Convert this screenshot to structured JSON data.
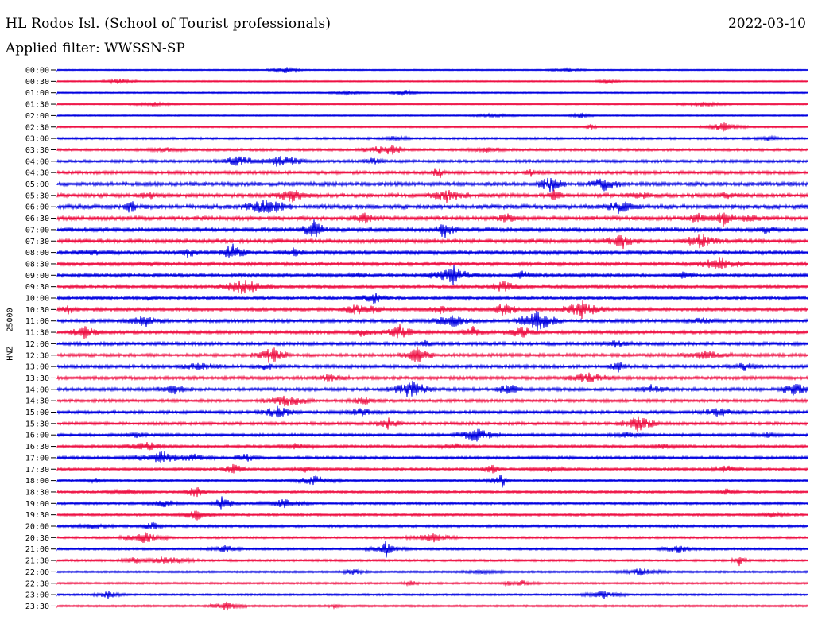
{
  "header": {
    "station": "HL Rodos Isl. (School of Tourist professionals)",
    "date": "2022-03-10",
    "filter": "Applied filter: WWSSN-SP"
  },
  "chart_data": {
    "type": "line",
    "title": "HL Rodos Isl. (School of Tourist professionals)",
    "ylabel": "HNZ - 25000",
    "xlabel": "",
    "rows": [
      "00:00",
      "00:30",
      "01:00",
      "01:30",
      "02:00",
      "02:30",
      "03:00",
      "03:30",
      "04:00",
      "04:30",
      "05:00",
      "05:30",
      "06:00",
      "06:30",
      "07:00",
      "07:30",
      "08:00",
      "08:30",
      "09:00",
      "09:30",
      "10:00",
      "10:30",
      "11:00",
      "11:30",
      "12:00",
      "12:30",
      "13:00",
      "13:30",
      "14:00",
      "14:30",
      "15:00",
      "15:30",
      "16:00",
      "16:30",
      "17:00",
      "17:30",
      "18:00",
      "18:30",
      "19:00",
      "19:30",
      "20:00",
      "20:30",
      "21:00",
      "21:30",
      "22:00",
      "22:30",
      "23:00",
      "23:30"
    ],
    "colors": [
      "#0000e0",
      "#ee1144"
    ],
    "activity_level": [
      0.08,
      0.09,
      0.1,
      0.1,
      0.1,
      0.15,
      0.25,
      0.3,
      0.35,
      0.45,
      0.55,
      0.6,
      0.65,
      0.6,
      0.6,
      0.55,
      0.55,
      0.5,
      0.5,
      0.5,
      0.45,
      0.45,
      0.45,
      0.45,
      0.45,
      0.45,
      0.45,
      0.45,
      0.45,
      0.4,
      0.4,
      0.4,
      0.35,
      0.35,
      0.35,
      0.35,
      0.3,
      0.3,
      0.3,
      0.3,
      0.3,
      0.25,
      0.25,
      0.25,
      0.2,
      0.2,
      0.2,
      0.2
    ]
  }
}
